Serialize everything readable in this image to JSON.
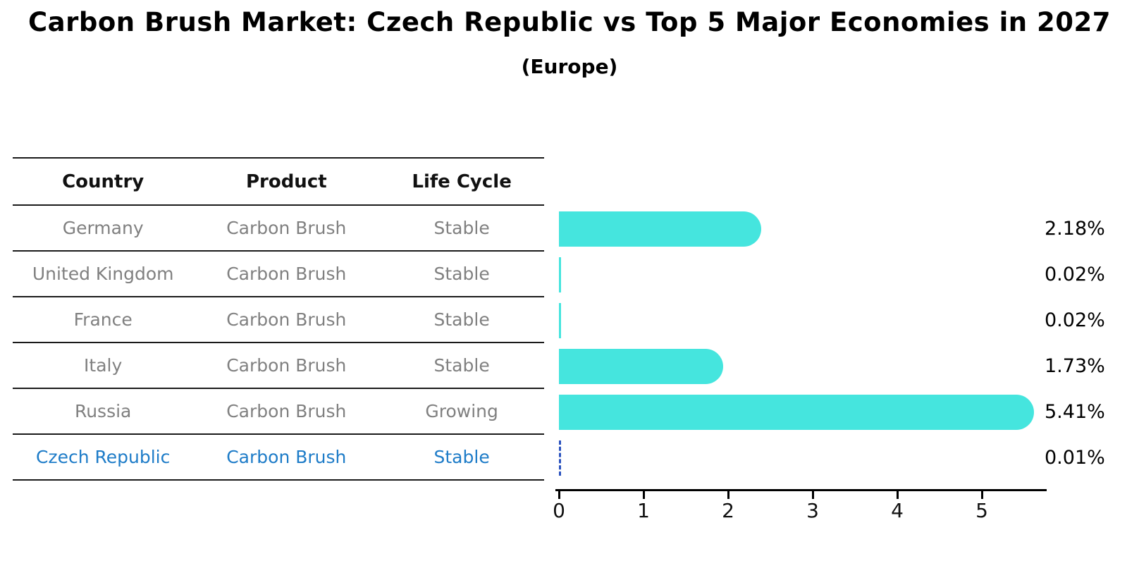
{
  "title": "Carbon Brush Market: Czech Republic vs Top 5 Major Economies in 2027",
  "subtitle": "(Europe)",
  "table": {
    "headers": {
      "country": "Country",
      "product": "Product",
      "life_cycle": "Life Cycle"
    },
    "rows": [
      {
        "country": "Germany",
        "product": "Carbon Brush",
        "life_cycle": "Stable",
        "highlight": false
      },
      {
        "country": "United Kingdom",
        "product": "Carbon Brush",
        "life_cycle": "Stable",
        "highlight": false
      },
      {
        "country": "France",
        "product": "Carbon Brush",
        "life_cycle": "Stable",
        "highlight": false
      },
      {
        "country": "Italy",
        "product": "Carbon Brush",
        "life_cycle": "Stable",
        "highlight": false
      },
      {
        "country": "Russia",
        "product": "Carbon Brush",
        "life_cycle": "Growing",
        "highlight": false
      },
      {
        "country": "Czech Republic",
        "product": "Carbon Brush",
        "life_cycle": "Stable",
        "highlight": true
      }
    ]
  },
  "chart_data": {
    "type": "bar",
    "orientation": "horizontal",
    "title": "Carbon Brush Market: Czech Republic vs Top 5 Major Economies in 2027",
    "subtitle": "(Europe)",
    "categories": [
      "Germany",
      "United Kingdom",
      "France",
      "Italy",
      "Russia",
      "Czech Republic"
    ],
    "values": [
      2.18,
      0.02,
      0.02,
      1.73,
      5.41,
      0.01
    ],
    "value_labels": [
      "2.18%",
      "0.02%",
      "0.02%",
      "1.73%",
      "5.41%",
      "0.01%"
    ],
    "x_ticks": [
      "0",
      "1",
      "2",
      "3",
      "4",
      "5"
    ],
    "xlim": [
      0,
      5.75
    ],
    "grid": false,
    "legend": "none",
    "bar_color": "#45e5de",
    "highlight_index": 5,
    "highlight_edge_color": "#2a52be",
    "highlight_text_color": "#1e7cc8"
  }
}
